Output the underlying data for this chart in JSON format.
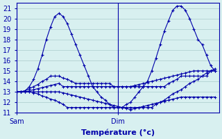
{
  "title": "",
  "xlabel": "Température (°c)",
  "ylabel": "",
  "bg_color": "#d8f0f0",
  "line_color": "#0000aa",
  "grid_color": "#aacccc",
  "ylim": [
    11,
    21.5
  ],
  "xlim": [
    0,
    48
  ],
  "yticks": [
    11,
    12,
    13,
    14,
    15,
    16,
    17,
    18,
    19,
    20,
    21
  ],
  "xtick_labels": [
    "Sam",
    "Dim"
  ],
  "xtick_positions": [
    0,
    24
  ],
  "sam_x": 0,
  "dim_x": 24,
  "series": [
    [
      13,
      13,
      13.1,
      13.5,
      14.2,
      15.2,
      16.5,
      18.0,
      19.2,
      20.2,
      20.5,
      20.2,
      19.5,
      18.5,
      17.5,
      16.5,
      15.5,
      14.5,
      13.5,
      13.0,
      12.5,
      12.2,
      11.8,
      11.5,
      11.5,
      11.5,
      11.8,
      12.0,
      12.5,
      13.0,
      13.5,
      14.0,
      15.0,
      16.2,
      17.5,
      18.8,
      19.8,
      20.8,
      21.2,
      21.2,
      20.8,
      20.0,
      19.0,
      18.0,
      17.5,
      16.5,
      15.5,
      15.0
    ],
    [
      13,
      13.0,
      13.0,
      13.1,
      13.2,
      13.3,
      13.4,
      13.5,
      13.6,
      13.7,
      13.8,
      13.5,
      13.5,
      13.5,
      13.5,
      13.5,
      13.5,
      13.5,
      13.5,
      13.5,
      13.5,
      13.5,
      13.5,
      13.5,
      13.5,
      13.5,
      13.5,
      13.5,
      13.6,
      13.7,
      13.8,
      13.9,
      14.0,
      14.1,
      14.2,
      14.3,
      14.4,
      14.5,
      14.6,
      14.7,
      14.8,
      14.9,
      15.0,
      15.0,
      15.0,
      15.0,
      15.0,
      15.0
    ],
    [
      13,
      13.0,
      13.0,
      13.0,
      13.0,
      13.0,
      13.0,
      13.0,
      13.0,
      13.0,
      13.0,
      12.9,
      12.8,
      12.7,
      12.6,
      12.5,
      12.4,
      12.3,
      12.2,
      12.1,
      12.0,
      11.9,
      11.8,
      11.7,
      11.6,
      11.5,
      11.4,
      11.3,
      11.4,
      11.5,
      11.6,
      11.7,
      11.8,
      11.9,
      12.0,
      12.1,
      12.2,
      12.3,
      12.4,
      12.5,
      12.5,
      12.5,
      12.5,
      12.5,
      12.5,
      12.5,
      12.5,
      12.5
    ],
    [
      13,
      13.0,
      13.1,
      13.3,
      13.5,
      13.7,
      14.0,
      14.2,
      14.5,
      14.5,
      14.5,
      14.3,
      14.2,
      14.0,
      13.8,
      13.8,
      13.8,
      13.8,
      13.8,
      13.8,
      13.8,
      13.8,
      13.8,
      13.5,
      13.5,
      13.5,
      13.5,
      13.5,
      13.5,
      13.5,
      13.5,
      13.5,
      13.5,
      13.5,
      13.5,
      13.5,
      13.8,
      14.0,
      14.2,
      14.5,
      14.5,
      14.5,
      14.5,
      14.5,
      14.5,
      14.5,
      15.0,
      15.0
    ],
    [
      13,
      13.0,
      13.0,
      13.0,
      12.9,
      12.8,
      12.6,
      12.5,
      12.3,
      12.2,
      12.0,
      11.8,
      11.5,
      11.5,
      11.5,
      11.5,
      11.5,
      11.5,
      11.5,
      11.5,
      11.5,
      11.5,
      11.5,
      11.5,
      11.5,
      11.5,
      11.5,
      11.5,
      11.5,
      11.5,
      11.5,
      11.5,
      11.5,
      11.8,
      12.0,
      12.2,
      12.5,
      12.8,
      13.0,
      13.2,
      13.5,
      13.8,
      14.0,
      14.2,
      14.5,
      14.8,
      15.0,
      15.2
    ]
  ]
}
